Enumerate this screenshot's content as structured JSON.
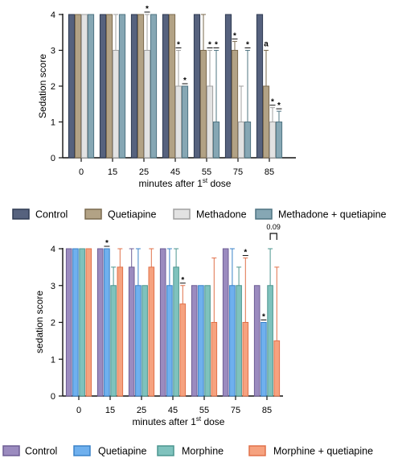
{
  "chart_data": [
    {
      "type": "bar",
      "title": "",
      "xlabel_main": "minutes after 1",
      "xlabel_sup": "st",
      "xlabel_tail": " dose",
      "ylabel": "Sedation score",
      "ylim": [
        0,
        4
      ],
      "yticks": [
        "0",
        "1",
        "2",
        "3",
        "4"
      ],
      "categories": [
        "0",
        "15",
        "25",
        "45",
        "55",
        "75",
        "85"
      ],
      "grid": false,
      "legend_position": "below",
      "series": [
        {
          "name": "Control",
          "color": "#56627e",
          "edge": "#2f3a52",
          "values": [
            4,
            4,
            4,
            4,
            4,
            4,
            4
          ],
          "err_up": [
            0,
            0,
            0,
            0,
            0,
            0,
            0
          ]
        },
        {
          "name": "Quetiapine",
          "color": "#b2a285",
          "edge": "#7a6a4e",
          "values": [
            4,
            4,
            4,
            4,
            3,
            3,
            2
          ],
          "err_up": [
            0,
            0,
            0,
            0,
            1,
            0.25,
            1
          ]
        },
        {
          "name": "Methadone",
          "color": "#e2e2e2",
          "edge": "#a0a0a0",
          "values": [
            4,
            3,
            3,
            2,
            2,
            1,
            1
          ],
          "err_up": [
            0,
            1,
            1,
            1,
            1,
            1,
            0.4
          ]
        },
        {
          "name": "Methadone + quetiapine",
          "color": "#86a7b4",
          "edge": "#4f7482",
          "values": [
            4,
            4,
            4,
            2,
            1,
            1,
            1
          ],
          "err_up": [
            0,
            0,
            0,
            0,
            2,
            2,
            0.3
          ]
        }
      ],
      "annotations": [
        {
          "category": "25",
          "series": 2,
          "text": "*"
        },
        {
          "category": "45",
          "series": 2,
          "text": "*"
        },
        {
          "category": "45",
          "series": 3,
          "text": "*"
        },
        {
          "category": "55",
          "series": 2,
          "text": "*"
        },
        {
          "category": "55",
          "series": 3,
          "text": "*"
        },
        {
          "category": "75",
          "series": 1,
          "text": "*"
        },
        {
          "category": "75",
          "series": 3,
          "text": "*"
        },
        {
          "category": "85",
          "series": 1,
          "text": "a"
        },
        {
          "category": "85",
          "series": 2,
          "text": "*"
        },
        {
          "category": "85",
          "series": 3,
          "text": "*"
        }
      ]
    },
    {
      "type": "bar",
      "title": "",
      "xlabel_main": "minutes after 1",
      "xlabel_sup": "st",
      "xlabel_tail": " dose",
      "ylabel": "sedation score",
      "ylim": [
        0,
        4
      ],
      "yticks": [
        "0",
        "1",
        "2",
        "3",
        "4"
      ],
      "categories": [
        "0",
        "15",
        "25",
        "45",
        "55",
        "75",
        "85"
      ],
      "grid": false,
      "legend_position": "below",
      "series": [
        {
          "name": "Control",
          "color": "#9b8bbf",
          "edge": "#6d5d94",
          "values": [
            4,
            4,
            3.5,
            4,
            3,
            4,
            3
          ],
          "err_up": [
            0,
            0,
            0.5,
            0,
            0,
            0,
            0
          ]
        },
        {
          "name": "Quetiapine",
          "color": "#6fb0ee",
          "edge": "#3a82c8",
          "values": [
            4,
            4,
            3,
            3,
            3,
            3,
            2
          ],
          "err_up": [
            0,
            0,
            1,
            1,
            0,
            1,
            0
          ]
        },
        {
          "name": "Morphine",
          "color": "#7fc2bd",
          "edge": "#4c958f",
          "values": [
            4,
            3,
            3,
            3.5,
            3,
            3,
            3
          ],
          "err_up": [
            0,
            0.5,
            0,
            0.5,
            0,
            0.5,
            1
          ]
        },
        {
          "name": "Morphine + quetiapine",
          "color": "#f6a27f",
          "edge": "#e0714a",
          "values": [
            4,
            3.5,
            3.5,
            2.5,
            2,
            2,
            1.5
          ],
          "err_up": [
            0,
            0.5,
            0.5,
            0.5,
            1.75,
            1.75,
            2
          ]
        }
      ],
      "annotations": [
        {
          "category": "15",
          "series": 1,
          "text": "*"
        },
        {
          "category": "45",
          "series": 3,
          "text": "*"
        },
        {
          "category": "75",
          "series": 3,
          "text": "*"
        },
        {
          "category": "85",
          "series": 1,
          "text": "*"
        }
      ],
      "bracket": {
        "category": "85",
        "from_series": 2,
        "to_series": 3,
        "text": "0.09"
      }
    }
  ]
}
